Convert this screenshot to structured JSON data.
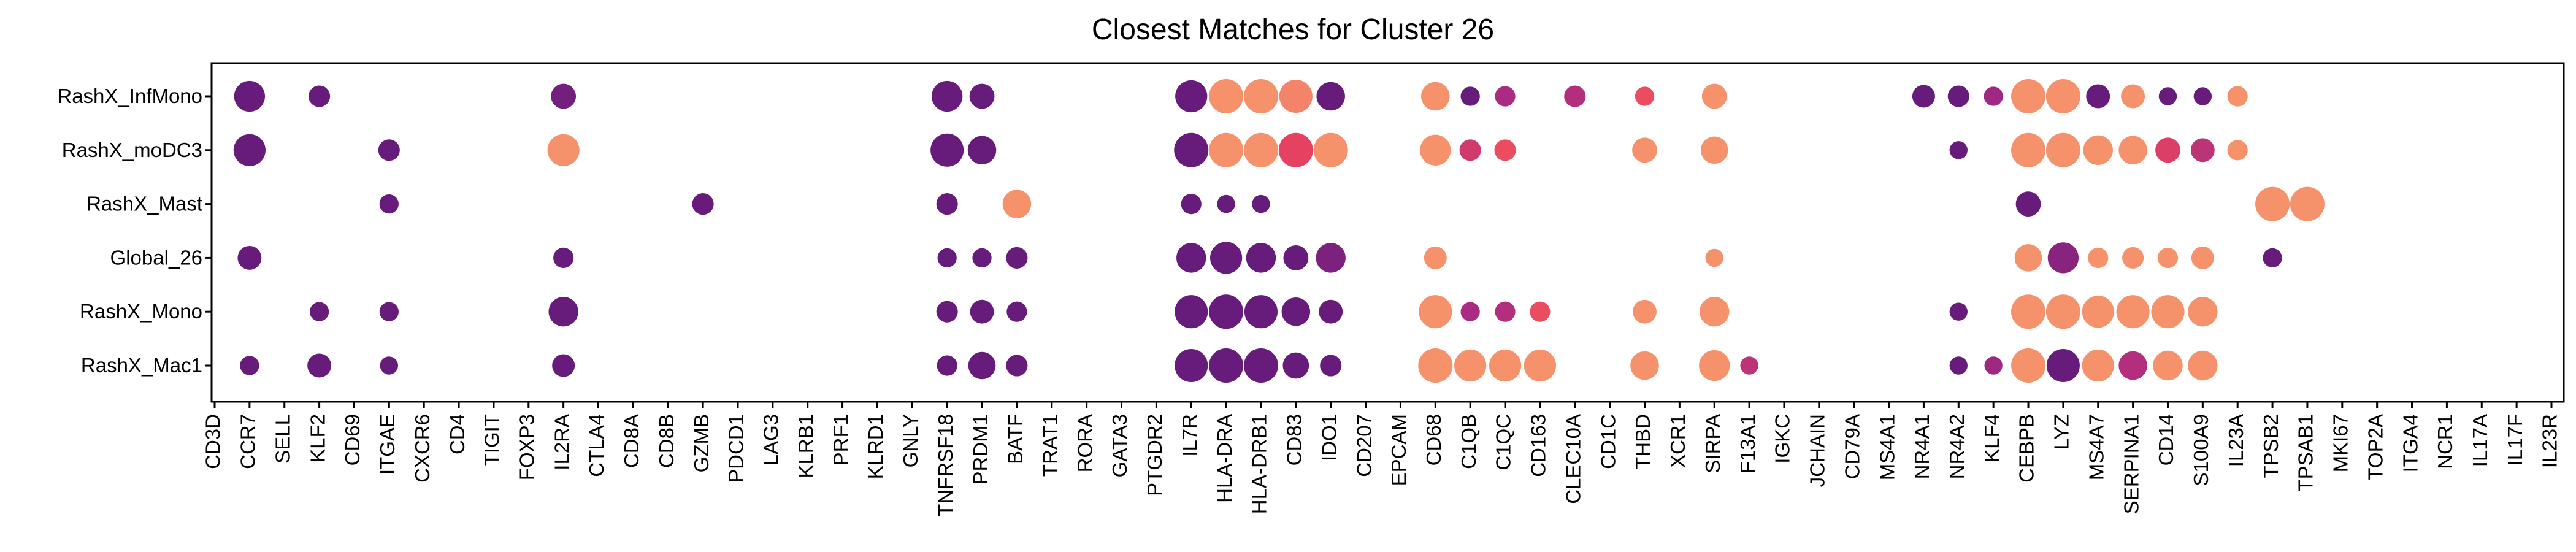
{
  "chart_data": {
    "type": "dot",
    "title": "Closest Matches for Cluster 26",
    "xlabel": "",
    "ylabel": "",
    "grid": false,
    "legend": "none",
    "rows": [
      "RashX_InfMono",
      "RashX_moDC3",
      "RashX_Mast",
      "Global_26",
      "RashX_Mono",
      "RashX_Mac1"
    ],
    "columns": [
      "CD3D",
      "CCR7",
      "SELL",
      "KLF2",
      "CD69",
      "ITGAE",
      "CXCR6",
      "CD4",
      "TIGIT",
      "FOXP3",
      "IL2RA",
      "CTLA4",
      "CD8A",
      "CD8B",
      "GZMB",
      "PDCD1",
      "LAG3",
      "KLRB1",
      "PRF1",
      "KLRD1",
      "GNLY",
      "TNFRSF18",
      "PRDM1",
      "BATF",
      "TRAT1",
      "RORA",
      "GATA3",
      "PTGDR2",
      "IL7R",
      "HLA-DRA",
      "HLA-DRB1",
      "CD83",
      "IDO1",
      "CD207",
      "EPCAM",
      "CD68",
      "C1QB",
      "C1QC",
      "CD163",
      "CLEC10A",
      "CD1C",
      "THBD",
      "XCR1",
      "SIRPA",
      "F13A1",
      "IGKC",
      "JCHAIN",
      "CD79A",
      "MS4A1",
      "NR4A1",
      "NR4A2",
      "KLF4",
      "CEBPB",
      "LYZ",
      "MS4A7",
      "SERPINA1",
      "CD14",
      "S100A9",
      "IL23A",
      "TPSB2",
      "TPSAB1",
      "MKI67",
      "TOP2A",
      "ITGA4",
      "NCR1",
      "IL17A",
      "IL17F",
      "IL23R"
    ],
    "color_scale": [
      "#5c1a7a",
      "#a62a84",
      "#e8435f",
      "#f9a06d"
    ],
    "size_scale_note": "dot size = fraction of cells (0-1); color = relative expression (0-1, purple low to orange high)",
    "points": [
      {
        "row": "RashX_InfMono",
        "col": "CCR7",
        "size": 0.85,
        "color": 0.05
      },
      {
        "row": "RashX_InfMono",
        "col": "KLF2",
        "size": 0.45,
        "color": 0.05
      },
      {
        "row": "RashX_InfMono",
        "col": "IL2RA",
        "size": 0.6,
        "color": 0.1
      },
      {
        "row": "RashX_InfMono",
        "col": "TNFRSF18",
        "size": 0.85,
        "color": 0.05
      },
      {
        "row": "RashX_InfMono",
        "col": "PRDM1",
        "size": 0.6,
        "color": 0.05
      },
      {
        "row": "RashX_InfMono",
        "col": "IL7R",
        "size": 0.9,
        "color": 0.05
      },
      {
        "row": "RashX_InfMono",
        "col": "HLA-DRA",
        "size": 1.0,
        "color": 0.95
      },
      {
        "row": "RashX_InfMono",
        "col": "HLA-DRB1",
        "size": 1.0,
        "color": 0.95
      },
      {
        "row": "RashX_InfMono",
        "col": "CD83",
        "size": 0.95,
        "color": 0.9
      },
      {
        "row": "RashX_InfMono",
        "col": "IDO1",
        "size": 0.75,
        "color": 0.05
      },
      {
        "row": "RashX_InfMono",
        "col": "CD68",
        "size": 0.75,
        "color": 0.95
      },
      {
        "row": "RashX_InfMono",
        "col": "C1QB",
        "size": 0.35,
        "color": 0.05
      },
      {
        "row": "RashX_InfMono",
        "col": "C1QC",
        "size": 0.4,
        "color": 0.35
      },
      {
        "row": "RashX_InfMono",
        "col": "CLEC10A",
        "size": 0.45,
        "color": 0.4
      },
      {
        "row": "RashX_InfMono",
        "col": "THBD",
        "size": 0.35,
        "color": 0.7
      },
      {
        "row": "RashX_InfMono",
        "col": "SIRPA",
        "size": 0.6,
        "color": 0.95
      },
      {
        "row": "RashX_InfMono",
        "col": "NR4A1",
        "size": 0.5,
        "color": 0.05
      },
      {
        "row": "RashX_InfMono",
        "col": "NR4A2",
        "size": 0.45,
        "color": 0.05
      },
      {
        "row": "RashX_InfMono",
        "col": "KLF4",
        "size": 0.35,
        "color": 0.3
      },
      {
        "row": "RashX_InfMono",
        "col": "CEBPB",
        "size": 1.0,
        "color": 0.95
      },
      {
        "row": "RashX_InfMono",
        "col": "LYZ",
        "size": 1.0,
        "color": 0.95
      },
      {
        "row": "RashX_InfMono",
        "col": "MS4A7",
        "size": 0.55,
        "color": 0.05
      },
      {
        "row": "RashX_InfMono",
        "col": "SERPINA1",
        "size": 0.55,
        "color": 0.95
      },
      {
        "row": "RashX_InfMono",
        "col": "CD14",
        "size": 0.3,
        "color": 0.05
      },
      {
        "row": "RashX_InfMono",
        "col": "S100A9",
        "size": 0.3,
        "color": 0.05
      },
      {
        "row": "RashX_InfMono",
        "col": "IL23A",
        "size": 0.4,
        "color": 0.95
      },
      {
        "row": "RashX_moDC3",
        "col": "CCR7",
        "size": 0.9,
        "color": 0.05
      },
      {
        "row": "RashX_moDC3",
        "col": "ITGAE",
        "size": 0.45,
        "color": 0.05
      },
      {
        "row": "RashX_moDC3",
        "col": "IL2RA",
        "size": 0.9,
        "color": 0.95
      },
      {
        "row": "RashX_moDC3",
        "col": "TNFRSF18",
        "size": 0.95,
        "color": 0.05
      },
      {
        "row": "RashX_moDC3",
        "col": "PRDM1",
        "size": 0.75,
        "color": 0.05
      },
      {
        "row": "RashX_moDC3",
        "col": "IL7R",
        "size": 1.0,
        "color": 0.05
      },
      {
        "row": "RashX_moDC3",
        "col": "HLA-DRA",
        "size": 1.0,
        "color": 0.95
      },
      {
        "row": "RashX_moDC3",
        "col": "HLA-DRB1",
        "size": 1.0,
        "color": 0.95
      },
      {
        "row": "RashX_moDC3",
        "col": "CD83",
        "size": 1.0,
        "color": 0.65
      },
      {
        "row": "RashX_moDC3",
        "col": "IDO1",
        "size": 1.0,
        "color": 0.95
      },
      {
        "row": "RashX_moDC3",
        "col": "CD68",
        "size": 0.85,
        "color": 0.95
      },
      {
        "row": "RashX_moDC3",
        "col": "C1QB",
        "size": 0.45,
        "color": 0.55
      },
      {
        "row": "RashX_moDC3",
        "col": "C1QC",
        "size": 0.45,
        "color": 0.7
      },
      {
        "row": "RashX_moDC3",
        "col": "THBD",
        "size": 0.6,
        "color": 0.95
      },
      {
        "row": "RashX_moDC3",
        "col": "SIRPA",
        "size": 0.7,
        "color": 0.95
      },
      {
        "row": "RashX_moDC3",
        "col": "NR4A2",
        "size": 0.3,
        "color": 0.05
      },
      {
        "row": "RashX_moDC3",
        "col": "CEBPB",
        "size": 1.0,
        "color": 0.95
      },
      {
        "row": "RashX_moDC3",
        "col": "LYZ",
        "size": 1.0,
        "color": 0.95
      },
      {
        "row": "RashX_moDC3",
        "col": "MS4A7",
        "size": 0.8,
        "color": 0.95
      },
      {
        "row": "RashX_moDC3",
        "col": "SERPINA1",
        "size": 0.75,
        "color": 0.95
      },
      {
        "row": "RashX_moDC3",
        "col": "CD14",
        "size": 0.6,
        "color": 0.6
      },
      {
        "row": "RashX_moDC3",
        "col": "S100A9",
        "size": 0.55,
        "color": 0.45
      },
      {
        "row": "RashX_moDC3",
        "col": "IL23A",
        "size": 0.4,
        "color": 0.95
      },
      {
        "row": "RashX_Mast",
        "col": "ITGAE",
        "size": 0.35,
        "color": 0.05
      },
      {
        "row": "RashX_Mast",
        "col": "GZMB",
        "size": 0.45,
        "color": 0.05
      },
      {
        "row": "RashX_Mast",
        "col": "TNFRSF18",
        "size": 0.45,
        "color": 0.05
      },
      {
        "row": "RashX_Mast",
        "col": "BATF",
        "size": 0.75,
        "color": 0.95
      },
      {
        "row": "RashX_Mast",
        "col": "IL7R",
        "size": 0.4,
        "color": 0.05
      },
      {
        "row": "RashX_Mast",
        "col": "HLA-DRA",
        "size": 0.3,
        "color": 0.05
      },
      {
        "row": "RashX_Mast",
        "col": "HLA-DRB1",
        "size": 0.3,
        "color": 0.05
      },
      {
        "row": "RashX_Mast",
        "col": "CEBPB",
        "size": 0.6,
        "color": 0.05
      },
      {
        "row": "RashX_Mast",
        "col": "TPSB2",
        "size": 1.0,
        "color": 0.95
      },
      {
        "row": "RashX_Mast",
        "col": "TPSAB1",
        "size": 1.0,
        "color": 0.95
      },
      {
        "row": "Global_26",
        "col": "CCR7",
        "size": 0.55,
        "color": 0.05
      },
      {
        "row": "Global_26",
        "col": "IL2RA",
        "size": 0.4,
        "color": 0.05
      },
      {
        "row": "Global_26",
        "col": "TNFRSF18",
        "size": 0.35,
        "color": 0.05
      },
      {
        "row": "Global_26",
        "col": "PRDM1",
        "size": 0.35,
        "color": 0.05
      },
      {
        "row": "Global_26",
        "col": "BATF",
        "size": 0.45,
        "color": 0.05
      },
      {
        "row": "Global_26",
        "col": "IL7R",
        "size": 0.8,
        "color": 0.05
      },
      {
        "row": "Global_26",
        "col": "HLA-DRA",
        "size": 0.9,
        "color": 0.05
      },
      {
        "row": "Global_26",
        "col": "HLA-DRB1",
        "size": 0.8,
        "color": 0.05
      },
      {
        "row": "Global_26",
        "col": "CD83",
        "size": 0.6,
        "color": 0.05
      },
      {
        "row": "Global_26",
        "col": "IDO1",
        "size": 0.8,
        "color": 0.15
      },
      {
        "row": "Global_26",
        "col": "CD68",
        "size": 0.5,
        "color": 0.95
      },
      {
        "row": "Global_26",
        "col": "SIRPA",
        "size": 0.3,
        "color": 0.95
      },
      {
        "row": "Global_26",
        "col": "CEBPB",
        "size": 0.7,
        "color": 0.95
      },
      {
        "row": "Global_26",
        "col": "LYZ",
        "size": 0.85,
        "color": 0.2
      },
      {
        "row": "Global_26",
        "col": "MS4A7",
        "size": 0.4,
        "color": 0.95
      },
      {
        "row": "Global_26",
        "col": "SERPINA1",
        "size": 0.45,
        "color": 0.95
      },
      {
        "row": "Global_26",
        "col": "CD14",
        "size": 0.4,
        "color": 0.95
      },
      {
        "row": "Global_26",
        "col": "S100A9",
        "size": 0.5,
        "color": 0.95
      },
      {
        "row": "Global_26",
        "col": "TPSB2",
        "size": 0.35,
        "color": 0.05
      },
      {
        "row": "RashX_Mono",
        "col": "KLF2",
        "size": 0.35,
        "color": 0.05
      },
      {
        "row": "RashX_Mono",
        "col": "ITGAE",
        "size": 0.35,
        "color": 0.05
      },
      {
        "row": "RashX_Mono",
        "col": "IL2RA",
        "size": 0.8,
        "color": 0.05
      },
      {
        "row": "RashX_Mono",
        "col": "TNFRSF18",
        "size": 0.45,
        "color": 0.05
      },
      {
        "row": "RashX_Mono",
        "col": "PRDM1",
        "size": 0.55,
        "color": 0.05
      },
      {
        "row": "RashX_Mono",
        "col": "BATF",
        "size": 0.4,
        "color": 0.05
      },
      {
        "row": "RashX_Mono",
        "col": "IL7R",
        "size": 0.95,
        "color": 0.05
      },
      {
        "row": "RashX_Mono",
        "col": "HLA-DRA",
        "size": 1.0,
        "color": 0.05
      },
      {
        "row": "RashX_Mono",
        "col": "HLA-DRB1",
        "size": 0.95,
        "color": 0.05
      },
      {
        "row": "RashX_Mono",
        "col": "CD83",
        "size": 0.75,
        "color": 0.05
      },
      {
        "row": "RashX_Mono",
        "col": "IDO1",
        "size": 0.55,
        "color": 0.05
      },
      {
        "row": "RashX_Mono",
        "col": "CD68",
        "size": 0.95,
        "color": 0.95
      },
      {
        "row": "RashX_Mono",
        "col": "C1QB",
        "size": 0.35,
        "color": 0.35
      },
      {
        "row": "RashX_Mono",
        "col": "C1QC",
        "size": 0.4,
        "color": 0.4
      },
      {
        "row": "RashX_Mono",
        "col": "CD163",
        "size": 0.4,
        "color": 0.7
      },
      {
        "row": "RashX_Mono",
        "col": "THBD",
        "size": 0.55,
        "color": 0.95
      },
      {
        "row": "RashX_Mono",
        "col": "SIRPA",
        "size": 0.8,
        "color": 0.95
      },
      {
        "row": "RashX_Mono",
        "col": "NR4A2",
        "size": 0.3,
        "color": 0.05
      },
      {
        "row": "RashX_Mono",
        "col": "CEBPB",
        "size": 1.0,
        "color": 0.95
      },
      {
        "row": "RashX_Mono",
        "col": "LYZ",
        "size": 1.0,
        "color": 0.95
      },
      {
        "row": "RashX_Mono",
        "col": "MS4A7",
        "size": 0.9,
        "color": 0.95
      },
      {
        "row": "RashX_Mono",
        "col": "SERPINA1",
        "size": 0.95,
        "color": 0.95
      },
      {
        "row": "RashX_Mono",
        "col": "CD14",
        "size": 0.95,
        "color": 0.95
      },
      {
        "row": "RashX_Mono",
        "col": "S100A9",
        "size": 0.8,
        "color": 0.95
      },
      {
        "row": "RashX_Mac1",
        "col": "CCR7",
        "size": 0.35,
        "color": 0.05
      },
      {
        "row": "RashX_Mac1",
        "col": "KLF2",
        "size": 0.55,
        "color": 0.05
      },
      {
        "row": "RashX_Mac1",
        "col": "ITGAE",
        "size": 0.3,
        "color": 0.05
      },
      {
        "row": "RashX_Mac1",
        "col": "IL2RA",
        "size": 0.5,
        "color": 0.05
      },
      {
        "row": "RashX_Mac1",
        "col": "TNFRSF18",
        "size": 0.4,
        "color": 0.05
      },
      {
        "row": "RashX_Mac1",
        "col": "PRDM1",
        "size": 0.7,
        "color": 0.05
      },
      {
        "row": "RashX_Mac1",
        "col": "BATF",
        "size": 0.45,
        "color": 0.05
      },
      {
        "row": "RashX_Mac1",
        "col": "IL7R",
        "size": 0.95,
        "color": 0.05
      },
      {
        "row": "RashX_Mac1",
        "col": "HLA-DRA",
        "size": 1.0,
        "color": 0.05
      },
      {
        "row": "RashX_Mac1",
        "col": "HLA-DRB1",
        "size": 1.0,
        "color": 0.05
      },
      {
        "row": "RashX_Mac1",
        "col": "CD83",
        "size": 0.65,
        "color": 0.05
      },
      {
        "row": "RashX_Mac1",
        "col": "IDO1",
        "size": 0.45,
        "color": 0.05
      },
      {
        "row": "RashX_Mac1",
        "col": "CD68",
        "size": 1.0,
        "color": 0.95
      },
      {
        "row": "RashX_Mac1",
        "col": "C1QB",
        "size": 0.9,
        "color": 0.95
      },
      {
        "row": "RashX_Mac1",
        "col": "C1QC",
        "size": 0.9,
        "color": 0.95
      },
      {
        "row": "RashX_Mac1",
        "col": "CD163",
        "size": 0.9,
        "color": 0.95
      },
      {
        "row": "RashX_Mac1",
        "col": "THBD",
        "size": 0.75,
        "color": 0.95
      },
      {
        "row": "RashX_Mac1",
        "col": "SIRPA",
        "size": 0.85,
        "color": 0.95
      },
      {
        "row": "RashX_Mac1",
        "col": "F13A1",
        "size": 0.3,
        "color": 0.45
      },
      {
        "row": "RashX_Mac1",
        "col": "NR4A2",
        "size": 0.3,
        "color": 0.05
      },
      {
        "row": "RashX_Mac1",
        "col": "KLF4",
        "size": 0.3,
        "color": 0.3
      },
      {
        "row": "RashX_Mac1",
        "col": "CEBPB",
        "size": 1.0,
        "color": 0.95
      },
      {
        "row": "RashX_Mac1",
        "col": "LYZ",
        "size": 0.95,
        "color": 0.05
      },
      {
        "row": "RashX_Mac1",
        "col": "MS4A7",
        "size": 0.9,
        "color": 0.95
      },
      {
        "row": "RashX_Mac1",
        "col": "SERPINA1",
        "size": 0.75,
        "color": 0.4
      },
      {
        "row": "RashX_Mac1",
        "col": "CD14",
        "size": 0.8,
        "color": 0.95
      },
      {
        "row": "RashX_Mac1",
        "col": "S100A9",
        "size": 0.8,
        "color": 0.95
      }
    ]
  }
}
